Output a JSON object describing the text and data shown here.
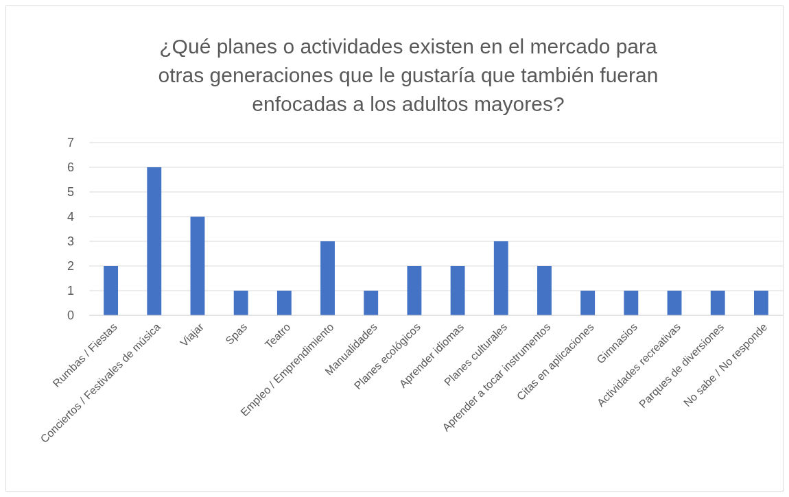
{
  "chart_data": {
    "type": "bar",
    "title": "¿Qué planes o actividades existen en el mercado para otras generaciones que le gustaría que también fueran enfocadas a los adultos mayores?",
    "categories": [
      "Rumbas / Fiestas",
      "Conciertos / Festivales de música",
      "Viajar",
      "Spas",
      "Teatro",
      "Empleo / Emprendimiento",
      "Manualidades",
      "Planes ecológicos",
      "Aprender idiomas",
      "Planes culturales",
      "Aprender a tocar instrumentos",
      "Citas en aplicaciones",
      "Gimnasios",
      "Actividades recreativas",
      "Parques de diversiones",
      "No sabe / No responde"
    ],
    "values": [
      2,
      6,
      4,
      1,
      1,
      3,
      1,
      2,
      2,
      3,
      2,
      1,
      1,
      1,
      1,
      1
    ],
    "color": "#4472c4",
    "ylim": [
      0,
      7
    ],
    "yticks": [
      0,
      1,
      2,
      3,
      4,
      5,
      6,
      7
    ],
    "grid": "y"
  }
}
